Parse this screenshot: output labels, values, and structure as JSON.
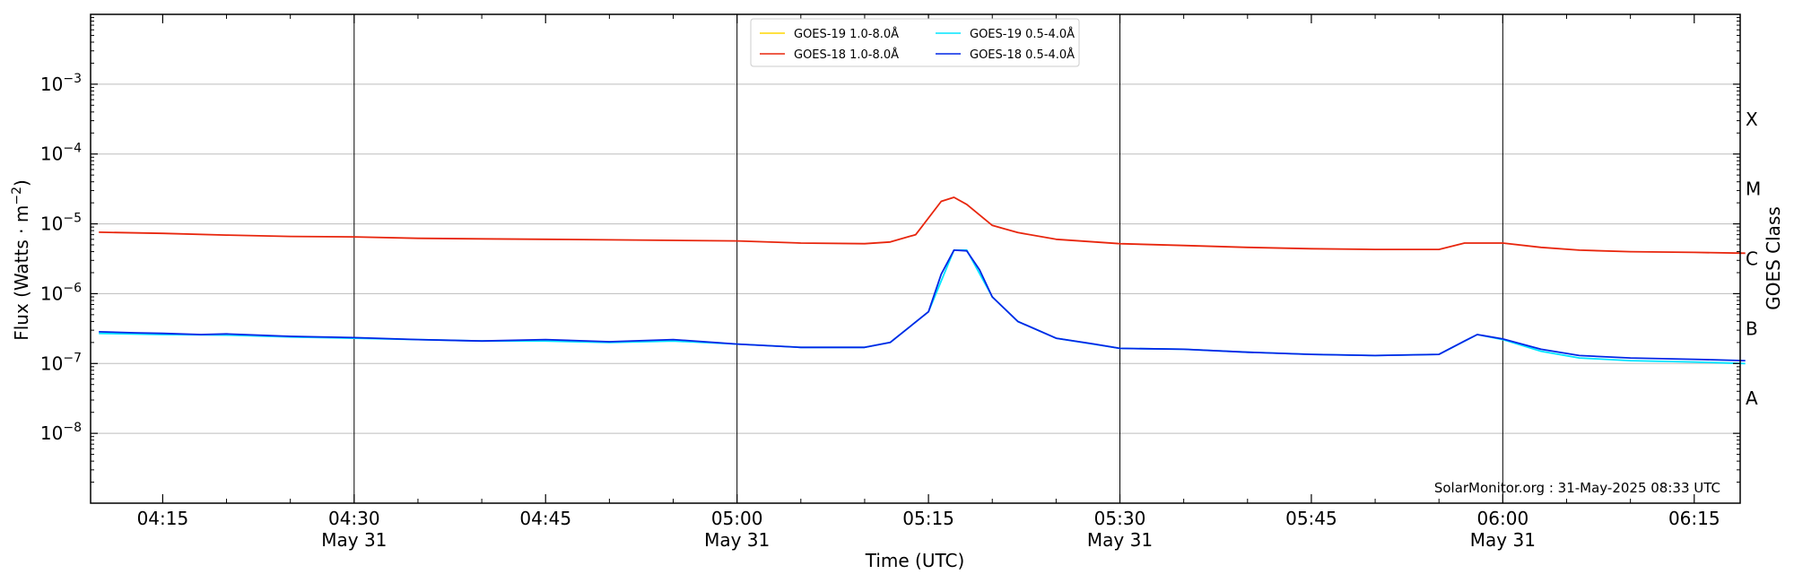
{
  "chart_data": {
    "type": "line",
    "xlabel": "Time (UTC)",
    "ylabel_main": "Flux (Watts · m",
    "ylabel_exp": "−2",
    "ylabel_close": ")",
    "right_label": "GOES Class",
    "annotation": "SolarMonitor.org : 31-May-2025 08:33 UTC",
    "y_scale": "log",
    "ylim": [
      1e-09,
      0.01
    ],
    "xlim": [
      "04:10",
      "06:19"
    ],
    "grid": "horizontal at decades, vertical at half hours",
    "legend_position": "top-center",
    "x_ticks": [
      {
        "time": "04:15",
        "label": "04:15",
        "date": ""
      },
      {
        "time": "04:30",
        "label": "04:30",
        "date": "May 31"
      },
      {
        "time": "04:45",
        "label": "04:45",
        "date": ""
      },
      {
        "time": "05:00",
        "label": "05:00",
        "date": "May 31"
      },
      {
        "time": "05:15",
        "label": "05:15",
        "date": ""
      },
      {
        "time": "05:30",
        "label": "05:30",
        "date": "May 31"
      },
      {
        "time": "05:45",
        "label": "05:45",
        "date": ""
      },
      {
        "time": "06:00",
        "label": "06:00",
        "date": "May 31"
      },
      {
        "time": "06:15",
        "label": "06:15",
        "date": ""
      }
    ],
    "y_ticks": [
      {
        "value": 1e-08,
        "base": "10",
        "exp": "−8"
      },
      {
        "value": 1e-07,
        "base": "10",
        "exp": "−7"
      },
      {
        "value": 1e-06,
        "base": "10",
        "exp": "−6"
      },
      {
        "value": 1e-05,
        "base": "10",
        "exp": "−5"
      },
      {
        "value": 0.0001,
        "base": "10",
        "exp": "−4"
      },
      {
        "value": 0.001,
        "base": "10",
        "exp": "−3"
      }
    ],
    "goes_classes": [
      {
        "label": "A",
        "value": 3.16e-08
      },
      {
        "label": "B",
        "value": 3.16e-07
      },
      {
        "label": "C",
        "value": 3.16e-06
      },
      {
        "label": "M",
        "value": 3.16e-05
      },
      {
        "label": "X",
        "value": 0.000316
      }
    ],
    "series": [
      {
        "name": "GOES-19 1.0-8.0Å",
        "color": "#ffd700",
        "points": []
      },
      {
        "name": "GOES-19 0.5-4.0Å",
        "color": "#00e5ff",
        "points": [
          [
            "04:10",
            2.7e-07
          ],
          [
            "04:15",
            2.6e-07
          ],
          [
            "04:20",
            2.55e-07
          ],
          [
            "04:25",
            2.4e-07
          ],
          [
            "04:30",
            2.3e-07
          ],
          [
            "04:35",
            2.2e-07
          ],
          [
            "04:40",
            2.1e-07
          ],
          [
            "04:45",
            2.1e-07
          ],
          [
            "04:50",
            2e-07
          ],
          [
            "04:55",
            2.1e-07
          ],
          [
            "05:00",
            1.9e-07
          ],
          [
            "05:05",
            1.7e-07
          ],
          [
            "05:10",
            1.7e-07
          ],
          [
            "05:12",
            2e-07
          ],
          [
            "05:15",
            5.5e-07
          ],
          [
            "05:17",
            4.2e-06
          ],
          [
            "05:18",
            4.2e-06
          ],
          [
            "05:20",
            9e-07
          ],
          [
            "05:22",
            4e-07
          ],
          [
            "05:25",
            2.3e-07
          ],
          [
            "05:30",
            1.65e-07
          ],
          [
            "05:35",
            1.6e-07
          ],
          [
            "05:40",
            1.45e-07
          ],
          [
            "05:45",
            1.35e-07
          ],
          [
            "05:50",
            1.3e-07
          ],
          [
            "05:55",
            1.35e-07
          ],
          [
            "05:58",
            2.6e-07
          ],
          [
            "06:00",
            2.2e-07
          ],
          [
            "06:03",
            1.5e-07
          ],
          [
            "06:06",
            1.2e-07
          ],
          [
            "06:10",
            1.1e-07
          ],
          [
            "06:15",
            1.05e-07
          ],
          [
            "06:19",
            1e-07
          ]
        ]
      },
      {
        "name": "GOES-18 1.0-8.0Å",
        "color": "#e8260d",
        "points": [
          [
            "04:10",
            7.6e-06
          ],
          [
            "04:15",
            7.3e-06
          ],
          [
            "04:20",
            6.9e-06
          ],
          [
            "04:25",
            6.6e-06
          ],
          [
            "04:30",
            6.5e-06
          ],
          [
            "04:35",
            6.2e-06
          ],
          [
            "04:40",
            6.1e-06
          ],
          [
            "04:45",
            6e-06
          ],
          [
            "04:50",
            5.9e-06
          ],
          [
            "04:55",
            5.8e-06
          ],
          [
            "05:00",
            5.7e-06
          ],
          [
            "05:05",
            5.3e-06
          ],
          [
            "05:10",
            5.2e-06
          ],
          [
            "05:12",
            5.5e-06
          ],
          [
            "05:14",
            7e-06
          ],
          [
            "05:16",
            2.1e-05
          ],
          [
            "05:17",
            2.4e-05
          ],
          [
            "05:18",
            1.9e-05
          ],
          [
            "05:20",
            9.5e-06
          ],
          [
            "05:22",
            7.5e-06
          ],
          [
            "05:25",
            6e-06
          ],
          [
            "05:30",
            5.2e-06
          ],
          [
            "05:35",
            4.9e-06
          ],
          [
            "05:40",
            4.6e-06
          ],
          [
            "05:45",
            4.4e-06
          ],
          [
            "05:50",
            4.3e-06
          ],
          [
            "05:55",
            4.3e-06
          ],
          [
            "05:57",
            5.3e-06
          ],
          [
            "06:00",
            5.3e-06
          ],
          [
            "06:03",
            4.6e-06
          ],
          [
            "06:06",
            4.2e-06
          ],
          [
            "06:10",
            4e-06
          ],
          [
            "06:15",
            3.9e-06
          ],
          [
            "06:19",
            3.8e-06
          ]
        ]
      },
      {
        "name": "GOES-18 0.5-4.0Å",
        "color": "#0026e6",
        "points": [
          [
            "04:10",
            2.85e-07
          ],
          [
            "04:13",
            2.75e-07
          ],
          [
            "04:15",
            2.7e-07
          ],
          [
            "04:18",
            2.6e-07
          ],
          [
            "04:20",
            2.65e-07
          ],
          [
            "04:25",
            2.45e-07
          ],
          [
            "04:30",
            2.35e-07
          ],
          [
            "04:35",
            2.2e-07
          ],
          [
            "04:40",
            2.1e-07
          ],
          [
            "04:45",
            2.2e-07
          ],
          [
            "04:50",
            2.05e-07
          ],
          [
            "04:55",
            2.2e-07
          ],
          [
            "05:00",
            1.9e-07
          ],
          [
            "05:05",
            1.7e-07
          ],
          [
            "05:10",
            1.7e-07
          ],
          [
            "05:12",
            2e-07
          ],
          [
            "05:15",
            5.5e-07
          ],
          [
            "05:16",
            1.9e-06
          ],
          [
            "05:17",
            4.2e-06
          ],
          [
            "05:18",
            4.1e-06
          ],
          [
            "05:19",
            2.2e-06
          ],
          [
            "05:20",
            9e-07
          ],
          [
            "05:22",
            4e-07
          ],
          [
            "05:25",
            2.3e-07
          ],
          [
            "05:28",
            1.9e-07
          ],
          [
            "05:30",
            1.65e-07
          ],
          [
            "05:35",
            1.6e-07
          ],
          [
            "05:40",
            1.45e-07
          ],
          [
            "05:45",
            1.35e-07
          ],
          [
            "05:50",
            1.3e-07
          ],
          [
            "05:55",
            1.35e-07
          ],
          [
            "05:57",
            2.1e-07
          ],
          [
            "05:58",
            2.6e-07
          ],
          [
            "06:00",
            2.25e-07
          ],
          [
            "06:03",
            1.6e-07
          ],
          [
            "06:06",
            1.3e-07
          ],
          [
            "06:10",
            1.2e-07
          ],
          [
            "06:15",
            1.15e-07
          ],
          [
            "06:19",
            1.1e-07
          ]
        ]
      }
    ]
  }
}
